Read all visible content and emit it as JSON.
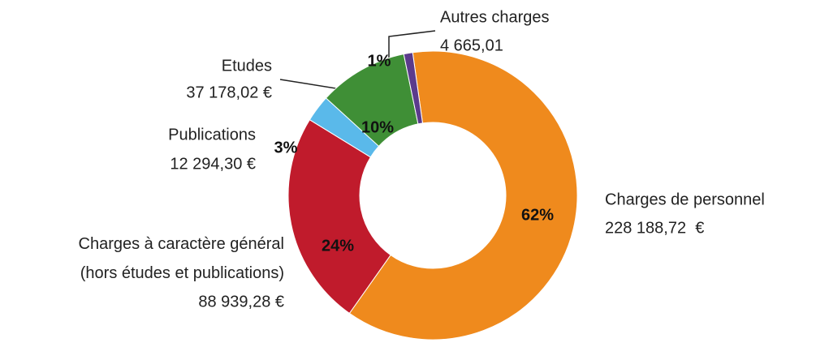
{
  "chart_data": {
    "type": "donut",
    "categories": [
      "Charges de personnel",
      "Charges à caractère général\n(hors études et publications)",
      "Publications",
      "Etudes",
      "Autres charges"
    ],
    "values": [
      62,
      24,
      3,
      10,
      1
    ],
    "value_labels": [
      "62%",
      "24%",
      "3%",
      "10%",
      "1%"
    ],
    "amounts": [
      "228 188,72  €",
      "88 939,28 €",
      "12 294,30 €",
      "37 178,02 €",
      "4 665,01"
    ],
    "colors": [
      "#ef8a1d",
      "#c01b2c",
      "#5ab9ea",
      "#3f8f36",
      "#5b3b8c"
    ]
  }
}
